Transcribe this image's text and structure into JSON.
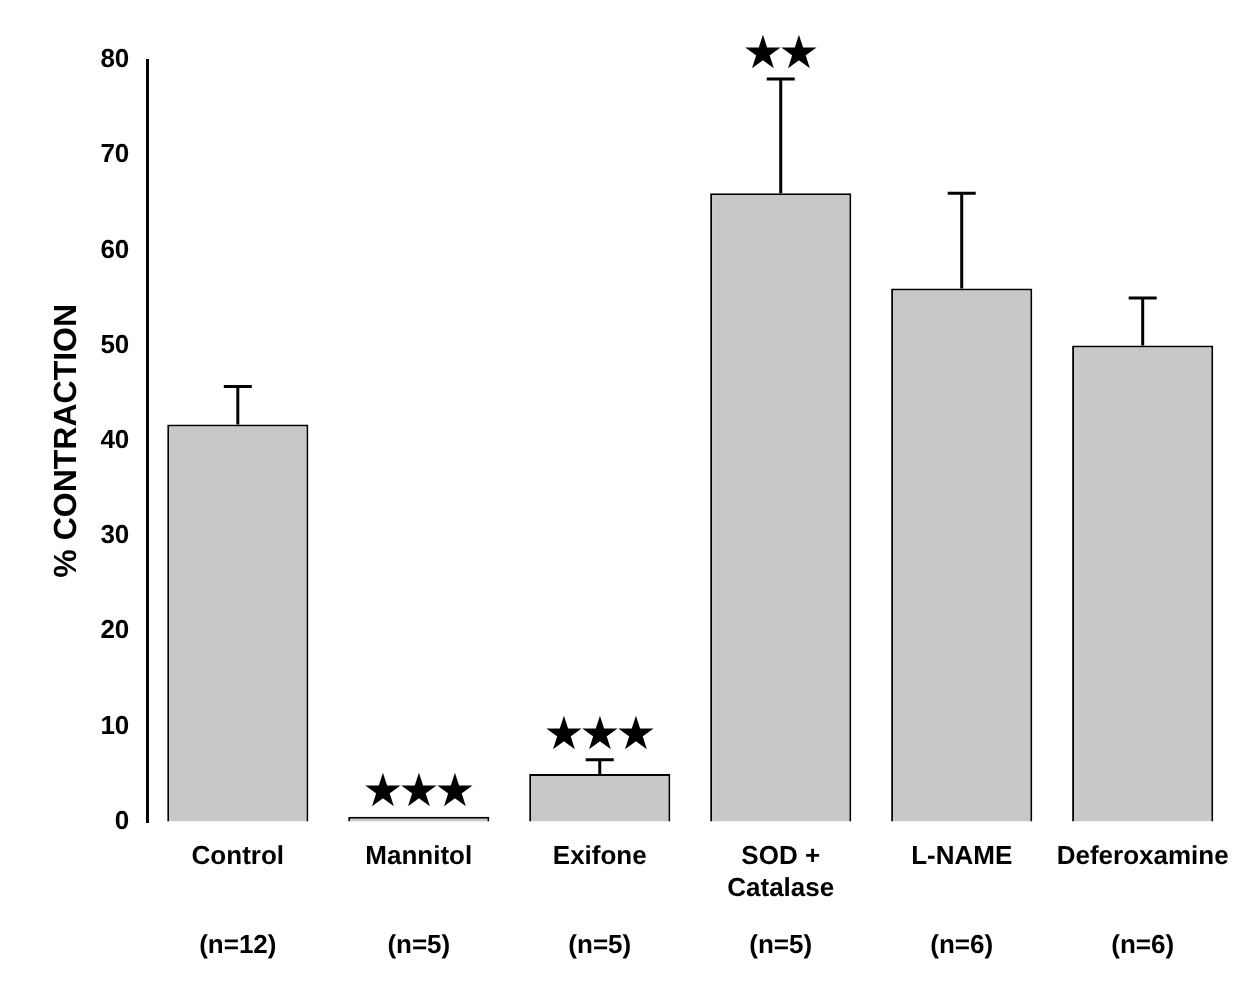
{
  "chart_data": {
    "type": "bar",
    "ylabel": "% CONTRACTION",
    "categories": [
      "Control",
      "Mannitol",
      "Exifone",
      "SOD + Catalase",
      "L-NAME",
      "Deferoxamine"
    ],
    "annotations": [
      "(n=12)",
      "(n=5)",
      "(n=5)",
      "(n=5)",
      "(n=6)",
      "(n=6)"
    ],
    "value_labels": [
      null,
      "★★★",
      "★★★",
      "★★",
      null,
      null
    ],
    "values": [
      41.7,
      0.5,
      5,
      66,
      56,
      50
    ],
    "errors": [
      4,
      null,
      1.5,
      12,
      10,
      5
    ],
    "color": "#c8c8c8",
    "ylim": [
      0,
      80
    ],
    "yticks": [
      0,
      10,
      20,
      30,
      40,
      50,
      60,
      70,
      80
    ],
    "grid": false,
    "legend": false
  }
}
